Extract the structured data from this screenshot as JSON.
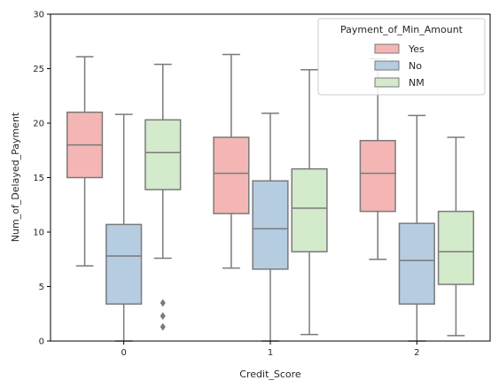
{
  "chart_data": {
    "type": "boxplot",
    "xlabel": "Credit_Score",
    "ylabel": "Num_of_Delayed_Payment",
    "categories": [
      "0",
      "1",
      "2"
    ],
    "ylim": [
      0,
      30
    ],
    "yticks": [
      "0",
      "5",
      "10",
      "15",
      "20",
      "25",
      "30"
    ],
    "grid": false,
    "legend": {
      "title": "Payment_of_Min_Amount",
      "placement": "top-right"
    },
    "series": [
      {
        "name": "Yes",
        "color": "#f4b6b4",
        "boxes": [
          {
            "whislo": 6.9,
            "q1": 15.0,
            "med": 18.0,
            "q3": 21.0,
            "whishi": 26.1,
            "fliers": []
          },
          {
            "whislo": 6.7,
            "q1": 11.7,
            "med": 15.4,
            "q3": 18.7,
            "whishi": 26.3,
            "fliers": []
          },
          {
            "whislo": 7.5,
            "q1": 11.9,
            "med": 15.4,
            "q3": 18.4,
            "whishi": 25.9,
            "fliers": []
          }
        ]
      },
      {
        "name": "No",
        "color": "#b5cce1",
        "boxes": [
          {
            "whislo": 0.0,
            "q1": 3.4,
            "med": 7.8,
            "q3": 10.7,
            "whishi": 20.8,
            "fliers": []
          },
          {
            "whislo": 0.0,
            "q1": 6.6,
            "med": 10.3,
            "q3": 14.7,
            "whishi": 20.9,
            "fliers": []
          },
          {
            "whislo": 0.0,
            "q1": 3.4,
            "med": 7.4,
            "q3": 10.8,
            "whishi": 20.7,
            "fliers": []
          }
        ]
      },
      {
        "name": "NM",
        "color": "#d3eacb",
        "boxes": [
          {
            "whislo": 7.6,
            "q1": 13.9,
            "med": 17.3,
            "q3": 20.3,
            "whishi": 25.4,
            "fliers": [
              1.3,
              2.3,
              3.5
            ]
          },
          {
            "whislo": 0.6,
            "q1": 8.2,
            "med": 12.2,
            "q3": 15.8,
            "whishi": 24.9,
            "fliers": []
          },
          {
            "whislo": 0.5,
            "q1": 5.2,
            "med": 8.2,
            "q3": 11.9,
            "whishi": 18.7,
            "fliers": []
          }
        ]
      }
    ],
    "line_color": "#7a7a7a"
  }
}
